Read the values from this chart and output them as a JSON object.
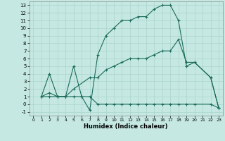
{
  "xlabel": "Humidex (Indice chaleur)",
  "xlim": [
    -0.5,
    23.5
  ],
  "ylim": [
    -1.5,
    13.5
  ],
  "xticks": [
    0,
    1,
    2,
    3,
    4,
    5,
    6,
    7,
    8,
    9,
    10,
    11,
    12,
    13,
    14,
    15,
    16,
    17,
    18,
    19,
    20,
    21,
    22,
    23
  ],
  "yticks": [
    -1,
    0,
    1,
    2,
    3,
    4,
    5,
    6,
    7,
    8,
    9,
    10,
    11,
    12,
    13
  ],
  "bg_color": "#c5e8e2",
  "grid_color": "#aad4cc",
  "line_color": "#1a6b5a",
  "lx1": [
    1,
    2,
    3,
    4,
    5,
    6,
    7,
    8,
    9,
    10,
    11,
    12,
    13,
    14,
    15,
    16,
    17,
    18,
    19,
    20,
    22,
    23
  ],
  "ly1": [
    1,
    1,
    1,
    1,
    1,
    1,
    1,
    0,
    0,
    0,
    0,
    0,
    0,
    0,
    0,
    0,
    0,
    0,
    0,
    0,
    0,
    -0.5
  ],
  "lx2": [
    1,
    2,
    3,
    4,
    5,
    7,
    8,
    9,
    10,
    11,
    12,
    13,
    14,
    15,
    16,
    17,
    18,
    19,
    20,
    22,
    23
  ],
  "ly2": [
    1,
    1.5,
    1,
    1,
    2,
    3.5,
    3.5,
    4.5,
    5,
    5.5,
    6,
    6,
    6,
    6.5,
    7,
    7,
    8.5,
    5.5,
    5.5,
    3.5,
    -0.5
  ],
  "lx3": [
    1,
    2,
    3,
    4,
    5,
    6,
    7,
    8,
    9,
    10,
    11,
    12,
    13,
    14,
    15,
    16,
    17,
    18,
    19,
    20,
    22,
    23
  ],
  "ly3": [
    1,
    4,
    1,
    1,
    5,
    1,
    -0.8,
    6.5,
    9,
    10,
    11,
    11,
    11.5,
    11.5,
    12.5,
    13,
    13,
    11,
    5,
    5.5,
    3.5,
    -0.5
  ]
}
